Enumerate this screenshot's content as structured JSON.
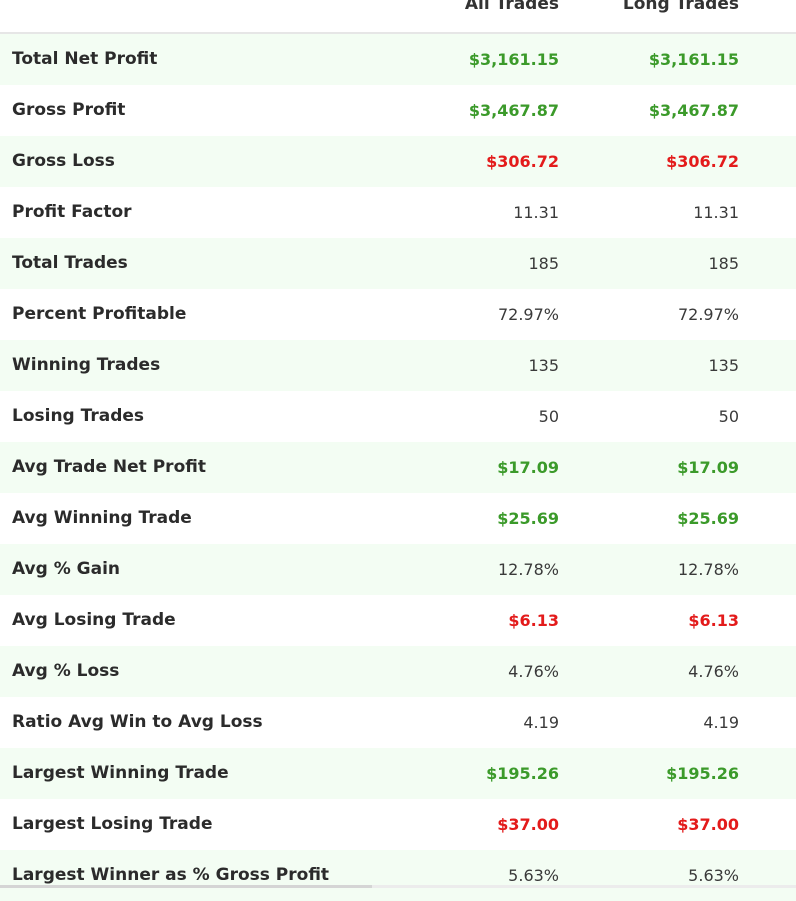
{
  "header": {
    "col_all": "All Trades",
    "col_long": "Long Trades"
  },
  "colors": {
    "positive": "#3b9a2a",
    "negative": "#e31b1b",
    "row_alt_bg": "#f3fdf3"
  },
  "rows": [
    {
      "label": "Total Net Profit",
      "all": "$3,161.15",
      "long": "$3,161.15",
      "tone": "pos"
    },
    {
      "label": "Gross Profit",
      "all": "$3,467.87",
      "long": "$3,467.87",
      "tone": "pos"
    },
    {
      "label": "Gross Loss",
      "all": "$306.72",
      "long": "$306.72",
      "tone": "neg"
    },
    {
      "label": "Profit Factor",
      "all": "11.31",
      "long": "11.31",
      "tone": ""
    },
    {
      "label": "Total Trades",
      "all": "185",
      "long": "185",
      "tone": ""
    },
    {
      "label": "Percent Profitable",
      "all": "72.97%",
      "long": "72.97%",
      "tone": ""
    },
    {
      "label": "Winning Trades",
      "all": "135",
      "long": "135",
      "tone": ""
    },
    {
      "label": "Losing Trades",
      "all": "50",
      "long": "50",
      "tone": ""
    },
    {
      "label": "Avg Trade Net Profit",
      "all": "$17.09",
      "long": "$17.09",
      "tone": "pos"
    },
    {
      "label": "Avg Winning Trade",
      "all": "$25.69",
      "long": "$25.69",
      "tone": "pos"
    },
    {
      "label": "Avg % Gain",
      "all": "12.78%",
      "long": "12.78%",
      "tone": ""
    },
    {
      "label": "Avg Losing Trade",
      "all": "$6.13",
      "long": "$6.13",
      "tone": "neg"
    },
    {
      "label": "Avg % Loss",
      "all": "4.76%",
      "long": "4.76%",
      "tone": ""
    },
    {
      "label": "Ratio Avg Win to Avg Loss",
      "all": "4.19",
      "long": "4.19",
      "tone": ""
    },
    {
      "label": "Largest Winning Trade",
      "all": "$195.26",
      "long": "$195.26",
      "tone": "pos"
    },
    {
      "label": "Largest Losing Trade",
      "all": "$37.00",
      "long": "$37.00",
      "tone": "neg"
    },
    {
      "label": "Largest Winner as % Gross Profit",
      "all": "5.63%",
      "long": "5.63%",
      "tone": ""
    }
  ]
}
